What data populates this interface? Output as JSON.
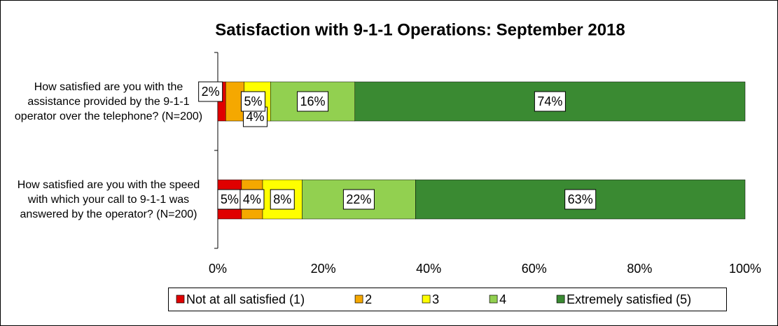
{
  "chart_data": {
    "type": "stacked_bar_horizontal",
    "title": "Satisfaction with 9-1-1 Operations: September 2018",
    "categories": [
      "How satisfied are you with the assistance provided by the 9-1-1 operator over the telephone? (N=200)",
      "How satisfied are you with the speed with which your call to 9-1-1 was answered by the operator? (N=200)"
    ],
    "series": [
      {
        "name": "Not at all satisfied (1)",
        "color": "#e00000",
        "values": [
          1.5,
          4.5
        ],
        "value_labels": [
          "2%",
          "5%"
        ]
      },
      {
        "name": "2",
        "color": "#f5a800",
        "values": [
          3.5,
          4
        ],
        "value_labels": [
          "4%",
          "4%"
        ]
      },
      {
        "name": "3",
        "color": "#ffff00",
        "values": [
          5,
          7.5
        ],
        "value_labels": [
          "5%",
          "8%"
        ]
      },
      {
        "name": "4",
        "color": "#92d050",
        "values": [
          16,
          21.5
        ],
        "value_labels": [
          "16%",
          "22%"
        ]
      },
      {
        "name": "Extremely satisfied (5)",
        "color": "#3a8a32",
        "values": [
          74,
          62.5
        ],
        "value_labels": [
          "74%",
          "63%"
        ]
      }
    ],
    "xlim": [
      0,
      100
    ],
    "xticks": [
      {
        "value": 0,
        "label": "0%"
      },
      {
        "value": 20,
        "label": "20%"
      },
      {
        "value": 40,
        "label": "40%"
      },
      {
        "value": 60,
        "label": "60%"
      },
      {
        "value": 80,
        "label": "80%"
      },
      {
        "value": 100,
        "label": "100%"
      }
    ],
    "legend": "bottom"
  }
}
